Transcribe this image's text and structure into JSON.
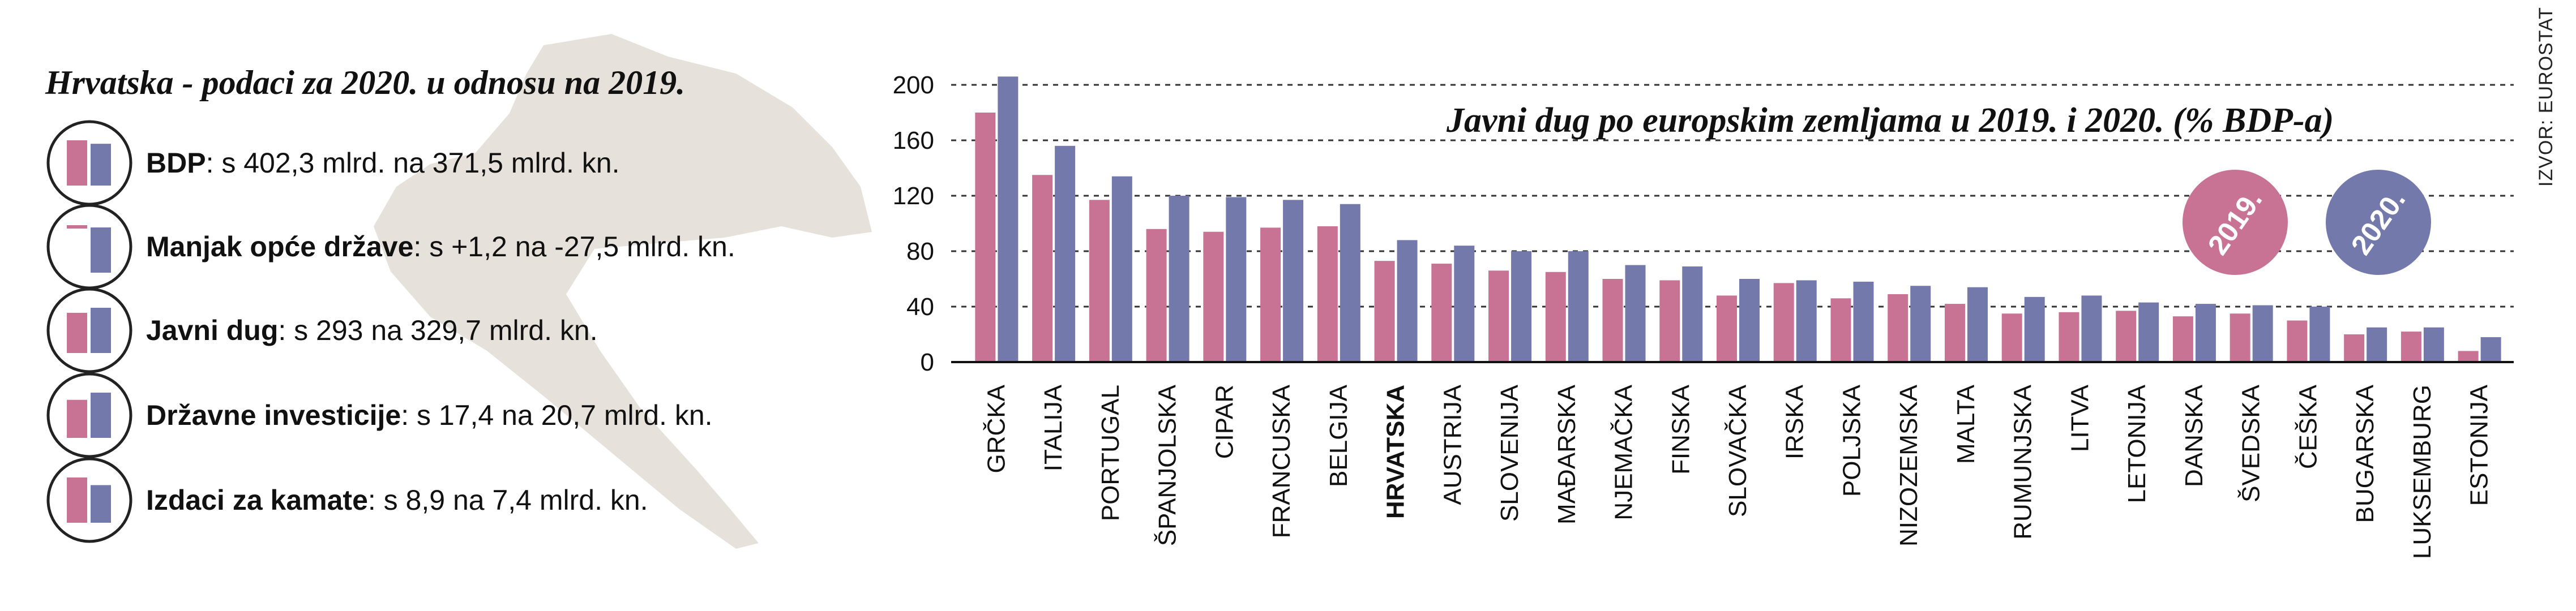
{
  "left_panel": {
    "title": "Hrvatska - podaci za 2020. u odnosu na 2019.",
    "stats": [
      {
        "name": "BDP",
        "detail": ": s 402,3 mlrd. na 371,5 mlrd. kn.",
        "v2019": 402.3,
        "v2020": 371.5
      },
      {
        "name": "Manjak opće države",
        "detail": ": s +1,2  na -27,5 mlrd. kn.",
        "v2019": 1.2,
        "v2020": -27.5
      },
      {
        "name": "Javni dug",
        "detail": ": s 293  na 329,7 mlrd. kn.",
        "v2019": 293,
        "v2020": 329.7
      },
      {
        "name": "Državne investicije",
        "detail": ": s 17,4 na 20,7 mlrd. kn.",
        "v2019": 17.4,
        "v2020": 20.7
      },
      {
        "name": "Izdaci za kamate",
        "detail": ": s 8,9 na 7,4 mlrd. kn.",
        "v2019": 8.9,
        "v2020": 7.4
      }
    ]
  },
  "colors": {
    "y2019": "#c97394",
    "y2020": "#7479ab",
    "map": "#e6e2db"
  },
  "legend": {
    "y2019": "2019.",
    "y2020": "2020."
  },
  "source": "IZVOR: EUROSTAT",
  "chart_data": {
    "type": "bar",
    "title": "Javni dug po europskim zemljama u 2019. i 2020. (% BDP-a)",
    "xlabel": "",
    "ylabel": "",
    "ylim": [
      0,
      200
    ],
    "yticks": [
      0,
      40,
      80,
      120,
      160,
      200
    ],
    "grid": true,
    "legend_placement": "top-right",
    "highlight": "HRVATSKA",
    "categories": [
      "GRČKA",
      "ITALIJA",
      "PORTUGAL",
      "ŠPANJOLSKA",
      "CIPAR",
      "FRANCUSKA",
      "BELGIJA",
      "HRVATSKA",
      "AUSTRIJA",
      "SLOVENIJA",
      "MAĐARSKA",
      "NJEMAČKA",
      "FINSKA",
      "SLOVAČKA",
      "IRSKA",
      "POLJSKA",
      "NIZOZEMSKA",
      "MALTA",
      "RUMUNJSKA",
      "LITVA",
      "LETONIJA",
      "DANSKA",
      "ŠVEDSKA",
      "ČEŠKA",
      "BUGARSKA",
      "LUKSEMBURG",
      "ESTONIJA"
    ],
    "series": [
      {
        "name": "2019.",
        "values": [
          180,
          135,
          117,
          96,
          94,
          97,
          98,
          73,
          71,
          66,
          65,
          60,
          59,
          48,
          57,
          46,
          49,
          42,
          35,
          36,
          37,
          33,
          35,
          30,
          20,
          22,
          8
        ]
      },
      {
        "name": "2020.",
        "values": [
          206,
          156,
          134,
          120,
          119,
          117,
          114,
          88,
          84,
          80,
          80,
          70,
          69,
          60,
          59,
          58,
          55,
          54,
          47,
          48,
          43,
          42,
          41,
          40,
          25,
          25,
          18
        ]
      }
    ]
  }
}
